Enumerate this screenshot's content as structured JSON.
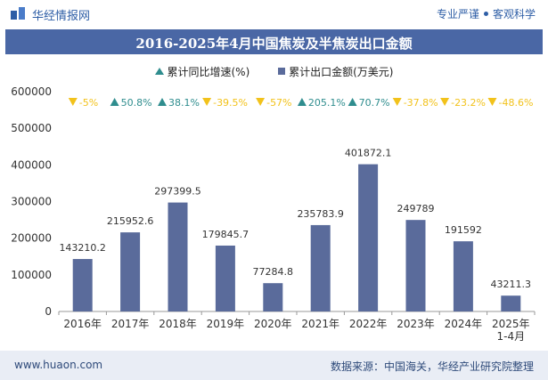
{
  "header": {
    "brand": "华经情报网",
    "tagline_left": "专业严谨",
    "tagline_right": "客观科学"
  },
  "footer": {
    "url": "www.huaon.com",
    "source": "数据来源：中国海关，华经产业研究院整理"
  },
  "colors": {
    "title_bg": "#4a67a5",
    "bar": "#5a6b9b",
    "growth_up": "#2f8d8e",
    "growth_down": "#f2c21b",
    "footer_bg": "#e9edf5"
  },
  "chart_data": {
    "type": "bar",
    "title": "2016-2025年4月中国焦炭及半焦炭出口金额",
    "categories": [
      "2016年",
      "2017年",
      "2018年",
      "2019年",
      "2020年",
      "2021年",
      "2022年",
      "2023年",
      "2024年",
      "2025年\n1-4月"
    ],
    "series": [
      {
        "name": "累计出口金额(万美元)",
        "values": [
          143210.2,
          215952.6,
          297399.5,
          179845.7,
          77284.8,
          235783.9,
          401872.1,
          249789,
          191592,
          43211.3
        ],
        "labels": [
          "143210.2",
          "215952.6",
          "297399.5",
          "179845.7",
          "77284.8",
          "235783.9",
          "401872.1",
          "249789",
          "191592",
          "43211.3"
        ]
      },
      {
        "name": "累计同比增速(%)",
        "values": [
          -5,
          50.8,
          38.1,
          -39.5,
          -57,
          205.1,
          70.7,
          -37.8,
          -23.2,
          -48.6
        ],
        "labels": [
          "-5%",
          "50.8%",
          "38.1%",
          "-39.5%",
          "-57%",
          "205.1%",
          "70.7%",
          "-37.8%",
          "-23.2%",
          "-48.6%"
        ]
      }
    ],
    "ylim": [
      0,
      600000
    ],
    "yticks": [
      0,
      100000,
      200000,
      300000,
      400000,
      500000,
      600000
    ],
    "ytick_labels": [
      "0",
      "100000",
      "200000",
      "300000",
      "400000",
      "500000",
      "600000"
    ],
    "legend": [
      "累计同比增速(%)",
      "累计出口金额(万美元)"
    ],
    "legend_position": "top"
  }
}
